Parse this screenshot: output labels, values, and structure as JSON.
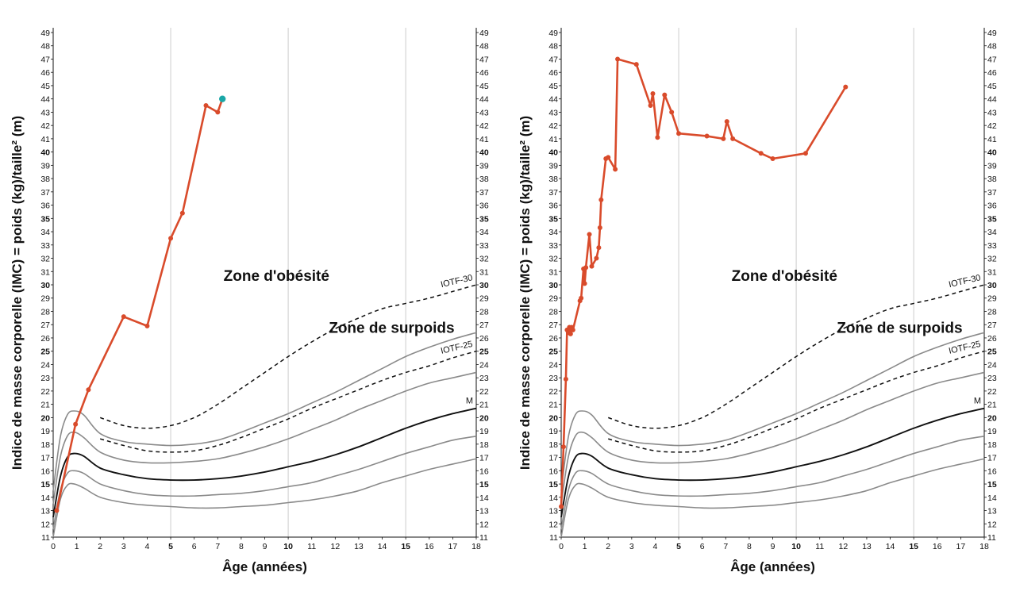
{
  "colors": {
    "patient": "#d94b2b",
    "last_point": "#1aa7a7",
    "grid": "#d5d5d5",
    "percentile": "#8a8a8a",
    "median": "#111111"
  },
  "chart_data": [
    {
      "type": "line",
      "xlabel": "Âge (années)",
      "ylabel": "Indice de masse corporelle (IMC) = poids (kg)/taille² (m)",
      "xlim": [
        0,
        18
      ],
      "ylim": [
        11,
        49
      ],
      "x_ticks": [
        "0",
        "1",
        "2",
        "3",
        "4",
        "5",
        "6",
        "7",
        "8",
        "9",
        "10",
        "11",
        "12",
        "13",
        "14",
        "15",
        "16",
        "17",
        "18"
      ],
      "x_bold_ticks": [
        "5",
        "10",
        "15"
      ],
      "y_ticks": [
        "11",
        "12",
        "13",
        "14",
        "15",
        "16",
        "17",
        "18",
        "19",
        "20",
        "21",
        "22",
        "23",
        "24",
        "25",
        "26",
        "27",
        "28",
        "29",
        "30",
        "31",
        "32",
        "33",
        "34",
        "35",
        "36",
        "37",
        "38",
        "39",
        "40",
        "41",
        "42",
        "43",
        "44",
        "45",
        "46",
        "47",
        "48",
        "49"
      ],
      "y_bold_ticks": [
        "15",
        "20",
        "25",
        "30",
        "35",
        "40"
      ],
      "grid": true,
      "annotations": {
        "zone_obesity": "Zone d'obésité",
        "zone_overweight": "Zone de surpoids"
      },
      "reference_curves": [
        {
          "name": "IOTF-30",
          "style": "dashed",
          "x": [
            2,
            3,
            4,
            5,
            6,
            7,
            8,
            9,
            10,
            11,
            12,
            13,
            14,
            15,
            16,
            17,
            18
          ],
          "values": [
            20.0,
            19.4,
            19.2,
            19.4,
            20.0,
            21.0,
            22.2,
            23.4,
            24.6,
            25.7,
            26.7,
            27.5,
            28.2,
            28.6,
            29.0,
            29.5,
            30.0
          ]
        },
        {
          "name": "IOTF-25",
          "style": "dashed",
          "x": [
            2,
            3,
            4,
            5,
            6,
            7,
            8,
            9,
            10,
            11,
            12,
            13,
            14,
            15,
            16,
            17,
            18
          ],
          "values": [
            18.4,
            17.9,
            17.5,
            17.4,
            17.5,
            17.9,
            18.5,
            19.2,
            19.9,
            20.7,
            21.4,
            22.1,
            22.8,
            23.4,
            23.9,
            24.5,
            25.0
          ]
        },
        {
          "name": "",
          "style": "solid-gray",
          "x": [
            0,
            0.3,
            0.6,
            0.9,
            1.3,
            2,
            3,
            4,
            5,
            6,
            7,
            8,
            9,
            10,
            11,
            12,
            13,
            14,
            15,
            16,
            17,
            18
          ],
          "values": [
            14.5,
            18.5,
            20.2,
            20.5,
            20.2,
            18.8,
            18.2,
            18.0,
            17.9,
            18.0,
            18.3,
            18.9,
            19.6,
            20.3,
            21.1,
            21.9,
            22.8,
            23.7,
            24.6,
            25.3,
            25.9,
            26.4
          ]
        },
        {
          "name": "",
          "style": "solid-gray",
          "x": [
            0,
            0.3,
            0.6,
            0.9,
            1.3,
            2,
            3,
            4,
            5,
            6,
            7,
            8,
            9,
            10,
            11,
            12,
            13,
            14,
            15,
            16,
            17,
            18
          ],
          "values": [
            13.5,
            17.0,
            18.6,
            18.9,
            18.5,
            17.4,
            16.8,
            16.6,
            16.6,
            16.7,
            16.9,
            17.3,
            17.8,
            18.4,
            19.1,
            19.8,
            20.6,
            21.3,
            22.0,
            22.6,
            23.0,
            23.4
          ]
        },
        {
          "name": "M",
          "style": "solid-black",
          "x": [
            0,
            0.3,
            0.6,
            0.9,
            1.3,
            2,
            3,
            4,
            5,
            6,
            7,
            8,
            9,
            10,
            11,
            12,
            13,
            14,
            15,
            16,
            17,
            18
          ],
          "values": [
            12.5,
            15.5,
            17.0,
            17.3,
            17.1,
            16.2,
            15.7,
            15.4,
            15.3,
            15.3,
            15.4,
            15.6,
            15.9,
            16.3,
            16.7,
            17.2,
            17.8,
            18.5,
            19.2,
            19.8,
            20.3,
            20.7
          ]
        },
        {
          "name": "",
          "style": "solid-gray",
          "x": [
            0,
            0.3,
            0.6,
            0.9,
            1.3,
            2,
            3,
            4,
            5,
            6,
            7,
            8,
            9,
            10,
            11,
            12,
            13,
            14,
            15,
            16,
            17,
            18
          ],
          "values": [
            11.6,
            14.5,
            15.8,
            16.0,
            15.8,
            15.0,
            14.5,
            14.2,
            14.1,
            14.1,
            14.2,
            14.3,
            14.5,
            14.8,
            15.1,
            15.6,
            16.1,
            16.7,
            17.3,
            17.8,
            18.3,
            18.6
          ]
        },
        {
          "name": "",
          "style": "solid-gray",
          "x": [
            0,
            0.3,
            0.6,
            0.9,
            1.3,
            2,
            3,
            4,
            5,
            6,
            7,
            8,
            9,
            10,
            11,
            12,
            13,
            14,
            15,
            16,
            17,
            18
          ],
          "values": [
            11.0,
            13.8,
            14.9,
            15.0,
            14.7,
            14.0,
            13.6,
            13.4,
            13.3,
            13.2,
            13.2,
            13.3,
            13.4,
            13.6,
            13.8,
            14.1,
            14.5,
            15.1,
            15.6,
            16.1,
            16.5,
            16.9
          ]
        }
      ],
      "series": [
        {
          "x": [
            0.15,
            0.95,
            1.5,
            3.0,
            4.0,
            5.0,
            5.5,
            6.5,
            7.0
          ],
          "values": [
            13.0,
            19.5,
            22.1,
            27.6,
            26.9,
            33.5,
            35.4,
            43.5,
            43.0
          ]
        }
      ],
      "last_point": {
        "x": 7.2,
        "y": 44.0
      }
    },
    {
      "type": "line",
      "xlabel": "Âge (années)",
      "ylabel": "Indice de masse corporelle (IMC) = poids (kg)/taille² (m)",
      "xlim": [
        0,
        18
      ],
      "ylim": [
        11,
        49
      ],
      "x_ticks": [
        "0",
        "1",
        "2",
        "3",
        "4",
        "5",
        "6",
        "7",
        "8",
        "9",
        "10",
        "11",
        "12",
        "13",
        "14",
        "15",
        "16",
        "17",
        "18"
      ],
      "x_bold_ticks": [
        "5",
        "10",
        "15"
      ],
      "y_ticks": [
        "11",
        "12",
        "13",
        "14",
        "15",
        "16",
        "17",
        "18",
        "19",
        "20",
        "21",
        "22",
        "23",
        "24",
        "25",
        "26",
        "27",
        "28",
        "29",
        "30",
        "31",
        "32",
        "33",
        "34",
        "35",
        "36",
        "37",
        "38",
        "39",
        "40",
        "41",
        "42",
        "43",
        "44",
        "45",
        "46",
        "47",
        "48",
        "49"
      ],
      "y_bold_ticks": [
        "15",
        "20",
        "25",
        "30",
        "35",
        "40"
      ],
      "grid": true,
      "annotations": {
        "zone_obesity": "Zone d'obésité",
        "zone_overweight": "Zone de surpoids"
      },
      "reference_curves": [
        {
          "name": "IOTF-30",
          "style": "dashed",
          "x": [
            2,
            3,
            4,
            5,
            6,
            7,
            8,
            9,
            10,
            11,
            12,
            13,
            14,
            15,
            16,
            17,
            18
          ],
          "values": [
            20.0,
            19.4,
            19.2,
            19.4,
            20.0,
            21.0,
            22.2,
            23.4,
            24.6,
            25.7,
            26.7,
            27.5,
            28.2,
            28.6,
            29.0,
            29.5,
            30.0
          ]
        },
        {
          "name": "IOTF-25",
          "style": "dashed",
          "x": [
            2,
            3,
            4,
            5,
            6,
            7,
            8,
            9,
            10,
            11,
            12,
            13,
            14,
            15,
            16,
            17,
            18
          ],
          "values": [
            18.4,
            17.9,
            17.5,
            17.4,
            17.5,
            17.9,
            18.5,
            19.2,
            19.9,
            20.7,
            21.4,
            22.1,
            22.8,
            23.4,
            23.9,
            24.5,
            25.0
          ]
        },
        {
          "name": "",
          "style": "solid-gray",
          "x": [
            0,
            0.3,
            0.6,
            0.9,
            1.3,
            2,
            3,
            4,
            5,
            6,
            7,
            8,
            9,
            10,
            11,
            12,
            13,
            14,
            15,
            16,
            17,
            18
          ],
          "values": [
            14.5,
            18.5,
            20.2,
            20.5,
            20.2,
            18.8,
            18.2,
            18.0,
            17.9,
            18.0,
            18.3,
            18.9,
            19.6,
            20.3,
            21.1,
            21.9,
            22.8,
            23.7,
            24.6,
            25.3,
            25.9,
            26.4
          ]
        },
        {
          "name": "",
          "style": "solid-gray",
          "x": [
            0,
            0.3,
            0.6,
            0.9,
            1.3,
            2,
            3,
            4,
            5,
            6,
            7,
            8,
            9,
            10,
            11,
            12,
            13,
            14,
            15,
            16,
            17,
            18
          ],
          "values": [
            13.5,
            17.0,
            18.6,
            18.9,
            18.5,
            17.4,
            16.8,
            16.6,
            16.6,
            16.7,
            16.9,
            17.3,
            17.8,
            18.4,
            19.1,
            19.8,
            20.6,
            21.3,
            22.0,
            22.6,
            23.0,
            23.4
          ]
        },
        {
          "name": "M",
          "style": "solid-black",
          "x": [
            0,
            0.3,
            0.6,
            0.9,
            1.3,
            2,
            3,
            4,
            5,
            6,
            7,
            8,
            9,
            10,
            11,
            12,
            13,
            14,
            15,
            16,
            17,
            18
          ],
          "values": [
            12.5,
            15.5,
            17.0,
            17.3,
            17.1,
            16.2,
            15.7,
            15.4,
            15.3,
            15.3,
            15.4,
            15.6,
            15.9,
            16.3,
            16.7,
            17.2,
            17.8,
            18.5,
            19.2,
            19.8,
            20.3,
            20.7
          ]
        },
        {
          "name": "",
          "style": "solid-gray",
          "x": [
            0,
            0.3,
            0.6,
            0.9,
            1.3,
            2,
            3,
            4,
            5,
            6,
            7,
            8,
            9,
            10,
            11,
            12,
            13,
            14,
            15,
            16,
            17,
            18
          ],
          "values": [
            11.6,
            14.5,
            15.8,
            16.0,
            15.8,
            15.0,
            14.5,
            14.2,
            14.1,
            14.1,
            14.2,
            14.3,
            14.5,
            14.8,
            15.1,
            15.6,
            16.1,
            16.7,
            17.3,
            17.8,
            18.3,
            18.6
          ]
        },
        {
          "name": "",
          "style": "solid-gray",
          "x": [
            0,
            0.3,
            0.6,
            0.9,
            1.3,
            2,
            3,
            4,
            5,
            6,
            7,
            8,
            9,
            10,
            11,
            12,
            13,
            14,
            15,
            16,
            17,
            18
          ],
          "values": [
            11.0,
            13.8,
            14.9,
            15.0,
            14.7,
            14.0,
            13.6,
            13.4,
            13.3,
            13.2,
            13.2,
            13.3,
            13.4,
            13.6,
            13.8,
            14.1,
            14.5,
            15.1,
            15.6,
            16.1,
            16.5,
            16.9
          ]
        }
      ],
      "series": [
        {
          "x": [
            0.0,
            0.1,
            0.2,
            0.25,
            0.3,
            0.35,
            0.4,
            0.45,
            0.5,
            0.8,
            0.85,
            0.95,
            1.0,
            1.05,
            1.2,
            1.3,
            1.5,
            1.6,
            1.65,
            1.7,
            1.9,
            2.0,
            2.3,
            2.4,
            3.2,
            3.8,
            3.9,
            4.1,
            4.4,
            4.7,
            5.0,
            6.2,
            6.9,
            7.05,
            7.3,
            8.5,
            9.0,
            10.4,
            12.1
          ],
          "values": [
            13.3,
            17.8,
            22.9,
            26.6,
            26.4,
            26.8,
            26.3,
            26.8,
            26.6,
            28.8,
            29.0,
            31.2,
            30.1,
            31.3,
            33.8,
            31.4,
            32.0,
            32.8,
            34.3,
            36.4,
            39.5,
            39.6,
            38.7,
            47.0,
            46.6,
            43.5,
            44.4,
            41.1,
            44.3,
            43.0,
            41.4,
            41.2,
            41.0,
            42.3,
            41.0,
            39.9,
            39.5,
            39.9,
            44.9
          ]
        }
      ]
    }
  ]
}
